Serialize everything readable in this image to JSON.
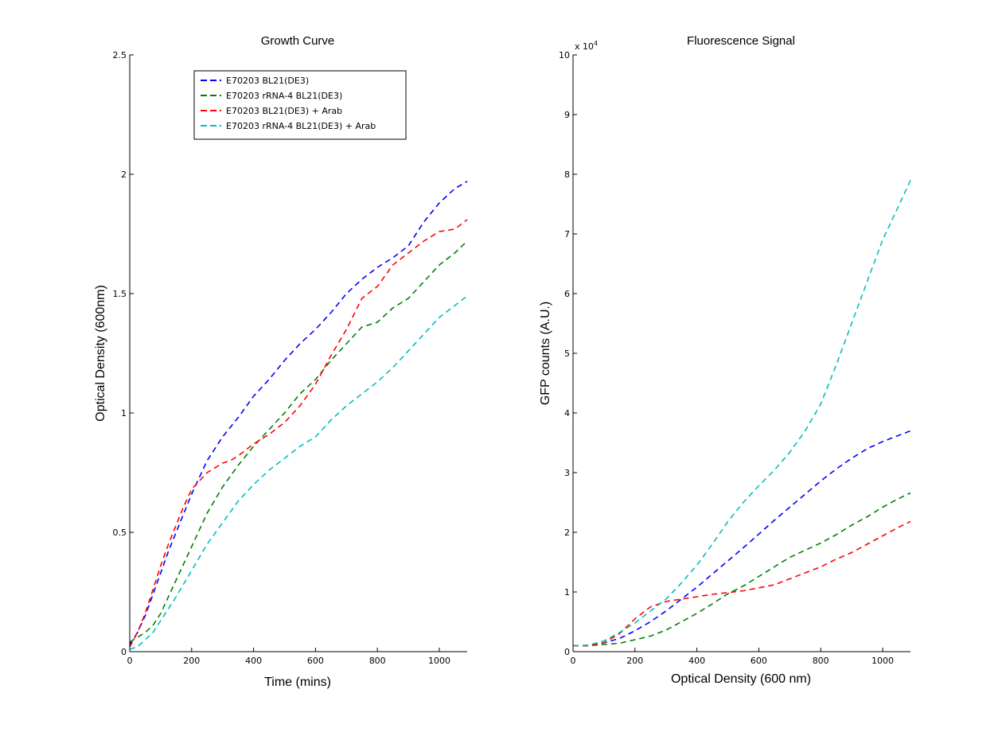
{
  "chart_data": [
    {
      "type": "line",
      "title": "Growth Curve",
      "xlabel": "Time (mins)",
      "ylabel": "Optical Density (600nm)",
      "xlim": [
        0,
        1090
      ],
      "ylim": [
        0,
        2.5
      ],
      "xticks": [
        0,
        200,
        400,
        600,
        800,
        1000
      ],
      "xtick_labels": [
        "0",
        "200",
        "400",
        "600",
        "800",
        "1000"
      ],
      "yticks": [
        0,
        0.5,
        1,
        1.5,
        2,
        2.5
      ],
      "ytick_labels": [
        "0",
        "0.5",
        "1",
        "1.5",
        "2",
        "2.5"
      ],
      "grid": false,
      "legend_position": "top-left",
      "line_style": "dashed",
      "series": [
        {
          "name": "E70203 BL21(DE3)",
          "color": "#0000ff",
          "x": [
            0,
            25,
            50,
            75,
            100,
            125,
            150,
            175,
            200,
            225,
            250,
            300,
            350,
            400,
            450,
            500,
            550,
            600,
            650,
            700,
            750,
            800,
            850,
            900,
            950,
            1000,
            1050,
            1090
          ],
          "y": [
            0.03,
            0.08,
            0.15,
            0.24,
            0.33,
            0.42,
            0.5,
            0.58,
            0.66,
            0.73,
            0.8,
            0.9,
            0.98,
            1.07,
            1.14,
            1.22,
            1.29,
            1.35,
            1.42,
            1.5,
            1.56,
            1.61,
            1.65,
            1.7,
            1.8,
            1.88,
            1.94,
            1.97
          ]
        },
        {
          "name": "E70203 rRNA-4 BL21(DE3)",
          "color": "#008000",
          "x": [
            0,
            25,
            50,
            75,
            100,
            150,
            200,
            250,
            300,
            350,
            400,
            450,
            500,
            550,
            600,
            650,
            700,
            750,
            800,
            850,
            900,
            950,
            1000,
            1050,
            1090
          ],
          "y": [
            0.04,
            0.06,
            0.08,
            0.11,
            0.16,
            0.3,
            0.44,
            0.58,
            0.69,
            0.78,
            0.86,
            0.93,
            1.0,
            1.08,
            1.14,
            1.22,
            1.29,
            1.36,
            1.38,
            1.44,
            1.48,
            1.55,
            1.62,
            1.67,
            1.72
          ]
        },
        {
          "name": "E70203 BL21(DE3) + Arab",
          "color": "#ff0000",
          "x": [
            0,
            25,
            50,
            75,
            100,
            125,
            150,
            175,
            200,
            250,
            300,
            325,
            350,
            400,
            450,
            500,
            550,
            600,
            650,
            700,
            750,
            800,
            850,
            900,
            950,
            1000,
            1050,
            1090
          ],
          "y": [
            0.02,
            0.08,
            0.16,
            0.26,
            0.36,
            0.45,
            0.53,
            0.61,
            0.68,
            0.75,
            0.79,
            0.8,
            0.82,
            0.87,
            0.91,
            0.96,
            1.03,
            1.12,
            1.24,
            1.35,
            1.48,
            1.53,
            1.62,
            1.67,
            1.72,
            1.76,
            1.77,
            1.81
          ]
        },
        {
          "name": "E70203 rRNA-4 BL21(DE3) + Arab",
          "color": "#00bfbf",
          "x": [
            0,
            25,
            50,
            75,
            100,
            150,
            200,
            250,
            300,
            350,
            400,
            450,
            500,
            550,
            600,
            650,
            700,
            750,
            800,
            850,
            900,
            950,
            1000,
            1050,
            1090
          ],
          "y": [
            0.01,
            0.02,
            0.05,
            0.08,
            0.13,
            0.23,
            0.34,
            0.45,
            0.54,
            0.63,
            0.7,
            0.76,
            0.81,
            0.86,
            0.9,
            0.97,
            1.03,
            1.08,
            1.13,
            1.19,
            1.26,
            1.33,
            1.4,
            1.45,
            1.49
          ]
        }
      ]
    },
    {
      "type": "line",
      "title": "Fluorescence Signal",
      "xlabel": "Optical Density (600 nm)",
      "ylabel": "GFP counts (A.U.)",
      "y_multiplier": "x 10^4",
      "xlim": [
        0,
        1090
      ],
      "ylim": [
        0,
        10
      ],
      "xticks": [
        0,
        200,
        400,
        600,
        800,
        1000
      ],
      "xtick_labels": [
        "0",
        "200",
        "400",
        "600",
        "800",
        "1000"
      ],
      "yticks": [
        0,
        1,
        2,
        3,
        4,
        5,
        6,
        7,
        8,
        9,
        10
      ],
      "ytick_labels": [
        "0",
        "1",
        "2",
        "3",
        "4",
        "5",
        "6",
        "7",
        "8",
        "9",
        "10"
      ],
      "grid": false,
      "line_style": "dashed",
      "series": [
        {
          "name": "E70203 BL21(DE3)",
          "color": "#0000ff",
          "x": [
            0,
            50,
            100,
            150,
            200,
            250,
            300,
            350,
            400,
            450,
            500,
            550,
            600,
            650,
            700,
            750,
            800,
            850,
            900,
            950,
            1000,
            1050,
            1090
          ],
          "y": [
            0.1,
            0.1,
            0.15,
            0.22,
            0.35,
            0.5,
            0.68,
            0.88,
            1.08,
            1.3,
            1.52,
            1.74,
            1.97,
            2.2,
            2.42,
            2.64,
            2.86,
            3.06,
            3.24,
            3.4,
            3.52,
            3.62,
            3.7
          ]
        },
        {
          "name": "E70203 rRNA-4 BL21(DE3)",
          "color": "#008000",
          "x": [
            0,
            50,
            100,
            150,
            200,
            250,
            300,
            350,
            400,
            450,
            500,
            550,
            600,
            650,
            700,
            750,
            800,
            850,
            900,
            950,
            1000,
            1050,
            1090
          ],
          "y": [
            0.1,
            0.1,
            0.12,
            0.14,
            0.2,
            0.26,
            0.36,
            0.5,
            0.64,
            0.8,
            0.97,
            1.1,
            1.26,
            1.42,
            1.58,
            1.7,
            1.82,
            1.96,
            2.12,
            2.26,
            2.42,
            2.56,
            2.66
          ]
        },
        {
          "name": "E70203 BL21(DE3) + Arab",
          "color": "#ff0000",
          "x": [
            0,
            50,
            100,
            150,
            200,
            250,
            300,
            350,
            400,
            450,
            500,
            550,
            600,
            650,
            700,
            750,
            800,
            850,
            900,
            950,
            1000,
            1050,
            1090
          ],
          "y": [
            0.1,
            0.1,
            0.15,
            0.3,
            0.55,
            0.75,
            0.84,
            0.88,
            0.92,
            0.96,
            0.99,
            1.02,
            1.07,
            1.12,
            1.22,
            1.32,
            1.42,
            1.55,
            1.66,
            1.8,
            1.94,
            2.08,
            2.18
          ]
        },
        {
          "name": "E70203 rRNA-4 BL21(DE3) + Arab",
          "color": "#00bfbf",
          "x": [
            0,
            50,
            100,
            150,
            200,
            250,
            300,
            350,
            400,
            450,
            500,
            550,
            600,
            650,
            700,
            750,
            800,
            850,
            900,
            950,
            1000,
            1050,
            1090
          ],
          "y": [
            0.1,
            0.11,
            0.18,
            0.32,
            0.48,
            0.68,
            0.88,
            1.15,
            1.45,
            1.8,
            2.18,
            2.5,
            2.78,
            3.04,
            3.34,
            3.7,
            4.15,
            4.8,
            5.5,
            6.2,
            6.9,
            7.45,
            7.9
          ]
        }
      ]
    }
  ]
}
